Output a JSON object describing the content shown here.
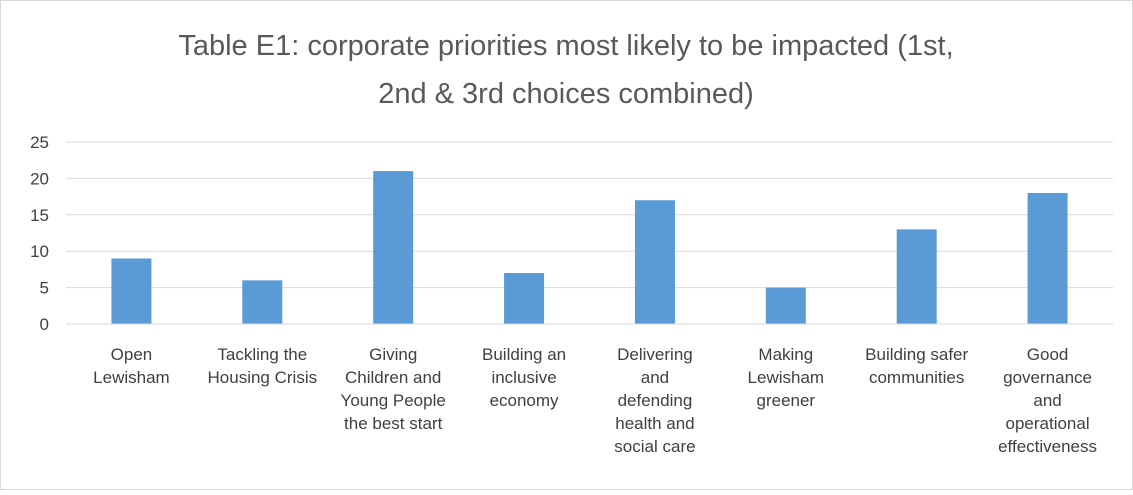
{
  "chart_data": {
    "type": "bar",
    "title_lines": [
      "Table E1: corporate priorities most likely to be impacted (1st,",
      "2nd & 3rd choices combined)"
    ],
    "categories": [
      [
        "Open",
        "Lewisham"
      ],
      [
        "Tackling the",
        "Housing Crisis"
      ],
      [
        "Giving",
        "Children and",
        "Young People",
        "the best start"
      ],
      [
        "Building an",
        "inclusive",
        "economy"
      ],
      [
        "Delivering",
        "and",
        "defending",
        "health and",
        "social care"
      ],
      [
        "Making",
        "Lewisham",
        "greener"
      ],
      [
        "Building safer",
        "communities"
      ],
      [
        "Good",
        "governance",
        "and",
        "operational",
        "effectiveness"
      ]
    ],
    "values": [
      9,
      6,
      21,
      7,
      17,
      5,
      13,
      18
    ],
    "ylim": [
      0,
      25
    ],
    "yticks": [
      "0",
      "5",
      "10",
      "15",
      "20",
      "25"
    ],
    "grid": true,
    "legend": "none",
    "bar_color": "#5b9bd5",
    "grid_color": "#d9d9d9",
    "text_color": "#404040",
    "title_color": "#595959"
  }
}
